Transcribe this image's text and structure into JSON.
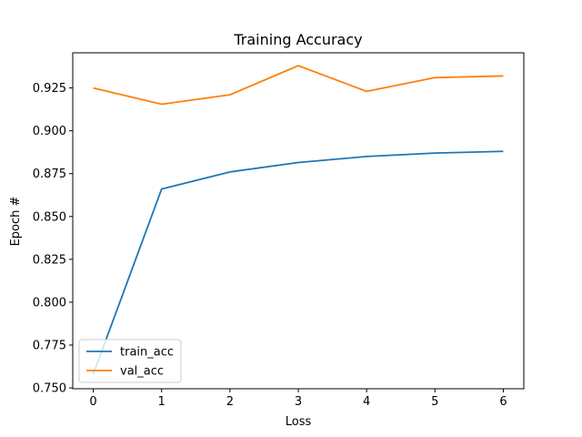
{
  "chart_data": {
    "type": "line",
    "title": "Training Accuracy",
    "xlabel": "Loss",
    "ylabel": "Epoch #",
    "x": [
      0,
      1,
      2,
      3,
      4,
      5,
      6
    ],
    "xlim": [
      -0.3,
      6.3
    ],
    "ylim": [
      0.7495,
      0.9455
    ],
    "xticks": [
      0,
      1,
      2,
      3,
      4,
      5,
      6
    ],
    "yticks": [
      0.75,
      0.775,
      0.8,
      0.825,
      0.85,
      0.875,
      0.9,
      0.925
    ],
    "ytick_labels": [
      "0.750",
      "0.775",
      "0.800",
      "0.825",
      "0.850",
      "0.875",
      "0.900",
      "0.925"
    ],
    "grid": false,
    "legend_position": "lower-left",
    "series": [
      {
        "name": "train_acc",
        "color": "#1f77b4",
        "values": [
          0.758,
          0.866,
          0.876,
          0.8815,
          0.885,
          0.887,
          0.888
        ]
      },
      {
        "name": "val_acc",
        "color": "#ff7f0e",
        "values": [
          0.925,
          0.9155,
          0.921,
          0.938,
          0.923,
          0.931,
          0.932
        ]
      }
    ]
  }
}
